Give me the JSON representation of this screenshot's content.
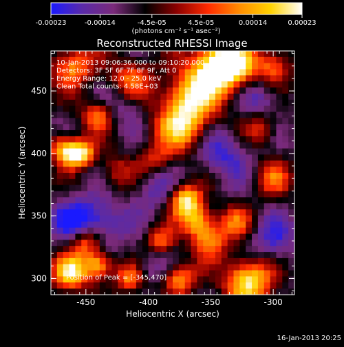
{
  "colorbar": {
    "tick_labels": [
      "-0.00023",
      "-0.00014",
      "-4.5e-05",
      "4.5e-05",
      "0.00014",
      "0.00023"
    ],
    "ticks": [
      -0.00023,
      -0.00014,
      -4.5e-05,
      4.5e-05,
      0.00014,
      0.00023
    ],
    "range": [
      -0.00023,
      0.00023
    ],
    "units": "(photons cm⁻² s⁻¹ asec⁻²)",
    "colors": [
      "#1a1aff",
      "#5a2aa8",
      "#7a2a7a",
      "#000000",
      "#8b0000",
      "#ff2a00",
      "#ff8c00",
      "#ffd200",
      "#ffffff"
    ]
  },
  "chart_data": {
    "type": "heatmap",
    "title": "Reconstructed RHESSI Image",
    "xlabel": "Heliocentric X (arcsec)",
    "ylabel": "Heliocentric Y (arcsec)",
    "xlim": [
      -478,
      -283
    ],
    "ylim": [
      287,
      482
    ],
    "x_ticks": [
      -450,
      -400,
      -350,
      -300
    ],
    "y_ticks": [
      300,
      350,
      400,
      450
    ],
    "x_tick_labels": [
      "-450",
      "-400",
      "-350",
      "-300"
    ],
    "y_tick_labels": [
      "300",
      "350",
      "400",
      "450"
    ],
    "info_lines": [
      "10-Jan-2013 09:06:36.000 to 09:10:20.000",
      "Detectors: 3F 5F 6F 7F 8F 9F, Att 0",
      "Energy Range: 12.0 - 25.0 keV",
      "Clean     Total counts: 4.58E+03"
    ],
    "peak_label": "Position of Peak = [-345,470]",
    "peak_position": [
      -345,
      470
    ],
    "sources": [
      {
        "x": -345,
        "y": 470,
        "amp": 1.0,
        "w": 14
      },
      {
        "x": -365,
        "y": 445,
        "amp": 0.85,
        "w": 16
      },
      {
        "x": -375,
        "y": 420,
        "amp": 0.7,
        "w": 14
      },
      {
        "x": -415,
        "y": 458,
        "amp": 0.6,
        "w": 12
      },
      {
        "x": -460,
        "y": 470,
        "amp": 0.65,
        "w": 12
      },
      {
        "x": -440,
        "y": 430,
        "amp": 0.6,
        "w": 9
      },
      {
        "x": -460,
        "y": 400,
        "amp": 0.9,
        "w": 8
      },
      {
        "x": -470,
        "y": 405,
        "amp": 0.5,
        "w": 8
      },
      {
        "x": -450,
        "y": 400,
        "amp": 0.45,
        "w": 7
      },
      {
        "x": -370,
        "y": 362,
        "amp": 0.95,
        "w": 9
      },
      {
        "x": -360,
        "y": 345,
        "amp": 0.7,
        "w": 9
      },
      {
        "x": -390,
        "y": 330,
        "amp": 0.55,
        "w": 8
      },
      {
        "x": -350,
        "y": 330,
        "amp": 0.6,
        "w": 10
      },
      {
        "x": -450,
        "y": 330,
        "amp": 0.7,
        "w": 9
      },
      {
        "x": -462,
        "y": 305,
        "amp": 0.9,
        "w": 10
      },
      {
        "x": -440,
        "y": 310,
        "amp": 0.8,
        "w": 8
      },
      {
        "x": -415,
        "y": 300,
        "amp": 0.6,
        "w": 8
      },
      {
        "x": -375,
        "y": 300,
        "amp": 0.7,
        "w": 9
      },
      {
        "x": -320,
        "y": 298,
        "amp": 1.0,
        "w": 13
      },
      {
        "x": -300,
        "y": 380,
        "amp": 0.5,
        "w": 10
      },
      {
        "x": -310,
        "y": 420,
        "amp": 0.45,
        "w": 9
      },
      {
        "x": -330,
        "y": 470,
        "amp": 0.75,
        "w": 12
      },
      {
        "x": -300,
        "y": 470,
        "amp": 0.55,
        "w": 10
      },
      {
        "x": -330,
        "y": 345,
        "amp": 0.5,
        "w": 9
      },
      {
        "x": -425,
        "y": 385,
        "amp": 0.35,
        "w": 10
      },
      {
        "x": -395,
        "y": 395,
        "amp": 0.35,
        "w": 9
      }
    ],
    "negatives": [
      {
        "x": -440,
        "y": 345,
        "amp": 0.9,
        "w": 14
      },
      {
        "x": -460,
        "y": 345,
        "amp": 0.8,
        "w": 12
      },
      {
        "x": -340,
        "y": 400,
        "amp": 0.75,
        "w": 14
      },
      {
        "x": -300,
        "y": 330,
        "amp": 0.7,
        "w": 13
      },
      {
        "x": -420,
        "y": 440,
        "amp": 0.6,
        "w": 12
      },
      {
        "x": -395,
        "y": 370,
        "amp": 0.55,
        "w": 11
      },
      {
        "x": -400,
        "y": 310,
        "amp": 0.45,
        "w": 10
      },
      {
        "x": -310,
        "y": 445,
        "amp": 0.6,
        "w": 11
      }
    ]
  },
  "footer": {
    "timestamp": "16-Jan-2013 20:25"
  }
}
